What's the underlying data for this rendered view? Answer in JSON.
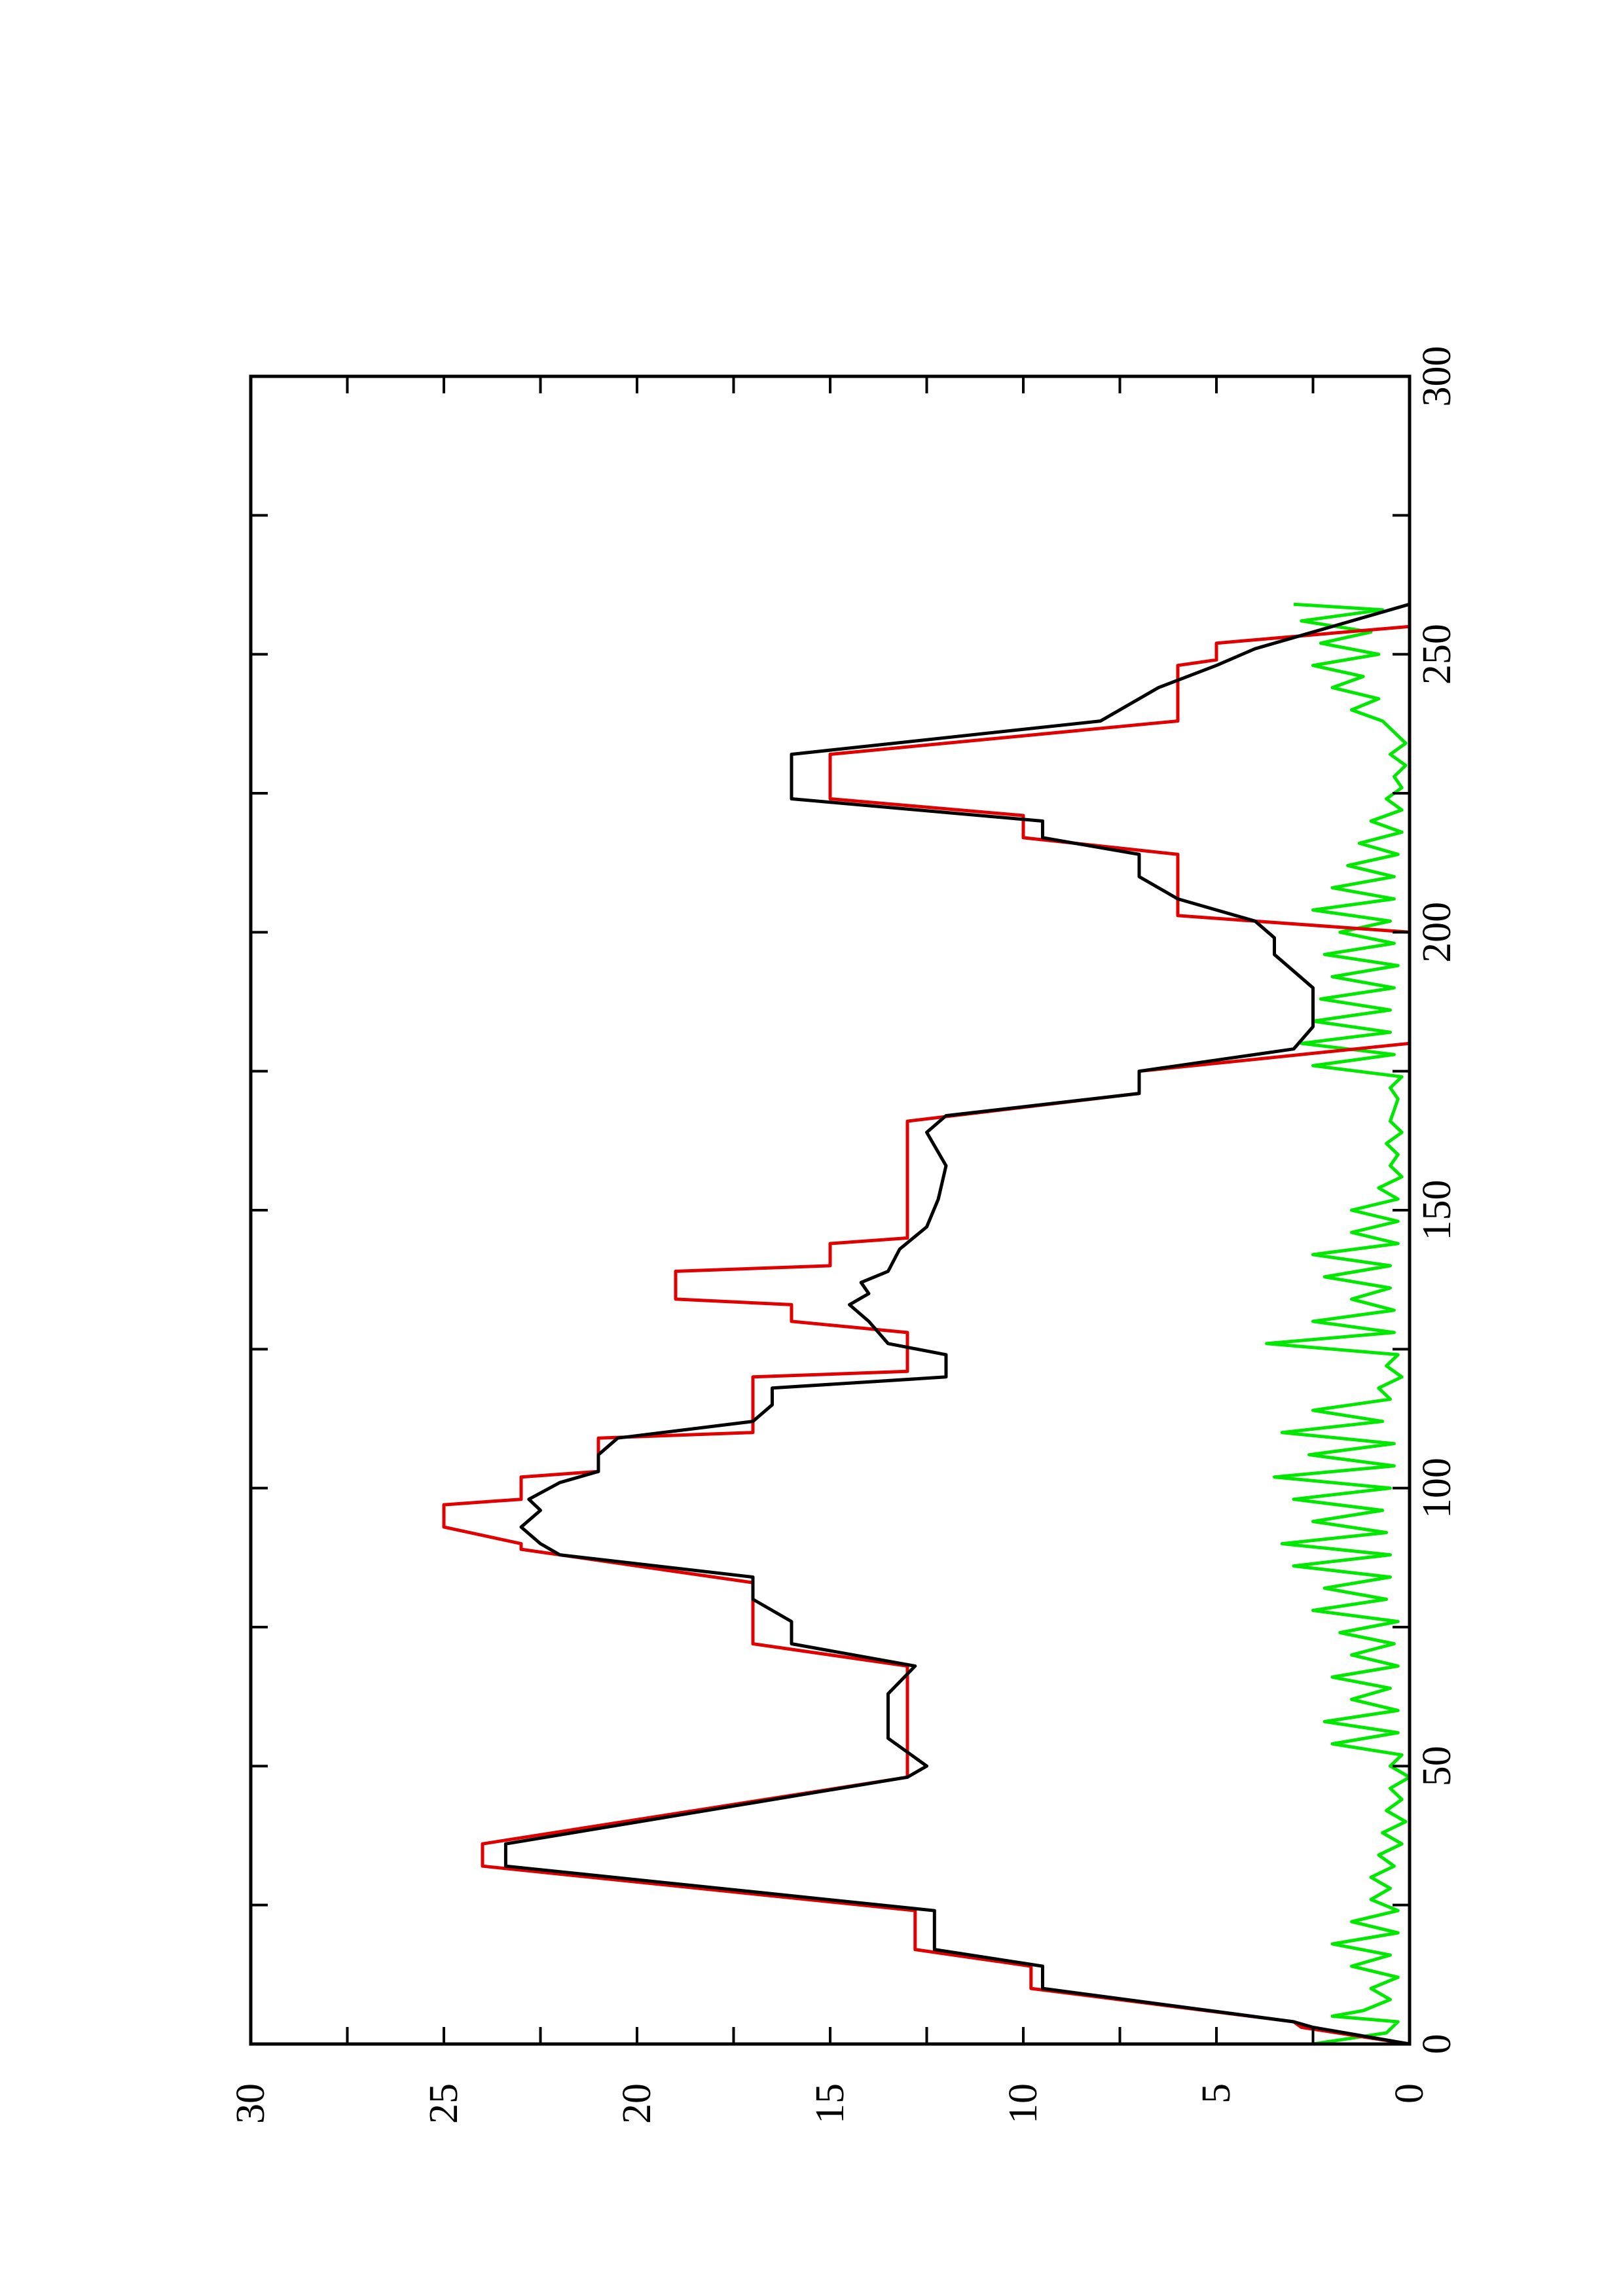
{
  "chart_data": {
    "type": "line",
    "title": "",
    "xlabel": "",
    "ylabel": "",
    "orientation": "rotated-90-ccw",
    "xlim": [
      0,
      300
    ],
    "ylim": [
      0,
      30
    ],
    "x_ticks": [
      0,
      50,
      100,
      150,
      200,
      250,
      300
    ],
    "y_ticks": [
      0,
      5,
      10,
      15,
      20,
      25,
      30
    ],
    "grid": false,
    "legend": "none",
    "series": [
      {
        "color": "#e00000",
        "points": [
          [
            0,
            0
          ],
          [
            3,
            2.8
          ],
          [
            4,
            3
          ],
          [
            10,
            9.8
          ],
          [
            14,
            9.8
          ],
          [
            17,
            12.8
          ],
          [
            24,
            12.8
          ],
          [
            32,
            24
          ],
          [
            36,
            24
          ],
          [
            48,
            13
          ],
          [
            68,
            13
          ],
          [
            72,
            17
          ],
          [
            83,
            17
          ],
          [
            89,
            23
          ],
          [
            90,
            23
          ],
          [
            93,
            25
          ],
          [
            97,
            25
          ],
          [
            98,
            23
          ],
          [
            102,
            23
          ],
          [
            103,
            21
          ],
          [
            109,
            21
          ],
          [
            110,
            17
          ],
          [
            120,
            17
          ],
          [
            121,
            13
          ],
          [
            128,
            13
          ],
          [
            130,
            16
          ],
          [
            133,
            16
          ],
          [
            134,
            19
          ],
          [
            139,
            19
          ],
          [
            140,
            15
          ],
          [
            144,
            15
          ],
          [
            145,
            13
          ],
          [
            166,
            13
          ],
          [
            171,
            7
          ],
          [
            175,
            7
          ],
          [
            180,
            0
          ],
          [
            200,
            0
          ],
          [
            203,
            6
          ],
          [
            214,
            6
          ],
          [
            217,
            10
          ],
          [
            221,
            10
          ],
          [
            224,
            15
          ],
          [
            232,
            15
          ],
          [
            238,
            6
          ],
          [
            248,
            6
          ],
          [
            249,
            5
          ],
          [
            252,
            5
          ],
          [
            255,
            0
          ]
        ]
      },
      {
        "color": "#000000",
        "points": [
          [
            0,
            0
          ],
          [
            3,
            2.5
          ],
          [
            4,
            3
          ],
          [
            10,
            9.5
          ],
          [
            14,
            9.5
          ],
          [
            17,
            12.3
          ],
          [
            24,
            12.3
          ],
          [
            32,
            23.4
          ],
          [
            36,
            23.4
          ],
          [
            48,
            13
          ],
          [
            50,
            12.5
          ],
          [
            55,
            13.5
          ],
          [
            63,
            13.5
          ],
          [
            68,
            12.8
          ],
          [
            72,
            16
          ],
          [
            76,
            16
          ],
          [
            80,
            17
          ],
          [
            84,
            17
          ],
          [
            88,
            22
          ],
          [
            90,
            22.5
          ],
          [
            93,
            23
          ],
          [
            96,
            22.5
          ],
          [
            98,
            22.8
          ],
          [
            101,
            22
          ],
          [
            103,
            21
          ],
          [
            106,
            21
          ],
          [
            109,
            20.5
          ],
          [
            112,
            17
          ],
          [
            115,
            16.5
          ],
          [
            118,
            16.5
          ],
          [
            120,
            12
          ],
          [
            124,
            12
          ],
          [
            126,
            13.5
          ],
          [
            130,
            14
          ],
          [
            133,
            14.5
          ],
          [
            135,
            14
          ],
          [
            137,
            14.2
          ],
          [
            139,
            13.5
          ],
          [
            143,
            13.2
          ],
          [
            147,
            12.5
          ],
          [
            152,
            12.2
          ],
          [
            158,
            12
          ],
          [
            164,
            12.5
          ],
          [
            167,
            12
          ],
          [
            171,
            7
          ],
          [
            175,
            7
          ],
          [
            179,
            3
          ],
          [
            183,
            2.5
          ],
          [
            190,
            2.5
          ],
          [
            193,
            3
          ],
          [
            196,
            3.5
          ],
          [
            199,
            3.5
          ],
          [
            202,
            4
          ],
          [
            206,
            6
          ],
          [
            210,
            7
          ],
          [
            214,
            7
          ],
          [
            217,
            9.5
          ],
          [
            220,
            9.5
          ],
          [
            224,
            16
          ],
          [
            232,
            16
          ],
          [
            238,
            8
          ],
          [
            244,
            6.5
          ],
          [
            248,
            5
          ],
          [
            251,
            4
          ],
          [
            254,
            2.5
          ],
          [
            257,
            1
          ],
          [
            259,
            0
          ]
        ]
      },
      {
        "color": "#00e800",
        "points": [
          [
            0,
            2.5
          ],
          [
            2,
            0.6
          ],
          [
            4,
            0.3
          ],
          [
            5,
            2
          ],
          [
            6,
            1.2
          ],
          [
            8,
            0.5
          ],
          [
            10,
            1
          ],
          [
            12,
            0.3
          ],
          [
            14,
            1.5
          ],
          [
            16,
            0.5
          ],
          [
            18,
            2
          ],
          [
            20,
            0.3
          ],
          [
            22,
            1.5
          ],
          [
            24,
            0.3
          ],
          [
            26,
            1
          ],
          [
            28,
            0.5
          ],
          [
            30,
            1
          ],
          [
            32,
            0.4
          ],
          [
            34,
            0.8
          ],
          [
            36,
            0.2
          ],
          [
            38,
            0.7
          ],
          [
            40,
            0.1
          ],
          [
            42,
            0.6
          ],
          [
            44,
            0.2
          ],
          [
            46,
            0.5
          ],
          [
            48,
            0
          ],
          [
            50,
            0.5
          ],
          [
            52,
            0.2
          ],
          [
            54,
            2
          ],
          [
            56,
            0.3
          ],
          [
            58,
            2.2
          ],
          [
            60,
            0.3
          ],
          [
            62,
            1.5
          ],
          [
            64,
            0.5
          ],
          [
            66,
            2
          ],
          [
            68,
            0.3
          ],
          [
            70,
            1.5
          ],
          [
            72,
            0.4
          ],
          [
            74,
            1.8
          ],
          [
            76,
            0.3
          ],
          [
            78,
            2.5
          ],
          [
            80,
            0.6
          ],
          [
            82,
            2.2
          ],
          [
            84,
            0.5
          ],
          [
            86,
            3
          ],
          [
            88,
            0.5
          ],
          [
            90,
            3.3
          ],
          [
            92,
            0.6
          ],
          [
            94,
            2.5
          ],
          [
            96,
            0.7
          ],
          [
            98,
            3
          ],
          [
            100,
            0.5
          ],
          [
            102,
            3.5
          ],
          [
            104,
            0.4
          ],
          [
            106,
            2.6
          ],
          [
            108,
            0.4
          ],
          [
            110,
            3.3
          ],
          [
            112,
            0.7
          ],
          [
            114,
            2.5
          ],
          [
            116,
            0.5
          ],
          [
            118,
            0.8
          ],
          [
            120,
            0.2
          ],
          [
            122,
            0.6
          ],
          [
            124,
            0.3
          ],
          [
            126,
            3.7
          ],
          [
            128,
            0.4
          ],
          [
            130,
            2.5
          ],
          [
            132,
            0.4
          ],
          [
            134,
            1.5
          ],
          [
            136,
            0.5
          ],
          [
            138,
            2.2
          ],
          [
            140,
            0.5
          ],
          [
            142,
            2.5
          ],
          [
            144,
            0.3
          ],
          [
            146,
            1.5
          ],
          [
            148,
            0.3
          ],
          [
            150,
            1.5
          ],
          [
            152,
            0.3
          ],
          [
            154,
            0.8
          ],
          [
            156,
            0.2
          ],
          [
            158,
            0.5
          ],
          [
            160,
            0.3
          ],
          [
            162,
            0.6
          ],
          [
            164,
            0.2
          ],
          [
            166,
            0.5
          ],
          [
            168,
            0.4
          ],
          [
            170,
            0.3
          ],
          [
            172,
            0.5
          ],
          [
            174,
            0.2
          ],
          [
            176,
            2.5
          ],
          [
            178,
            0.4
          ],
          [
            180,
            2.8
          ],
          [
            182,
            0.5
          ],
          [
            184,
            2.5
          ],
          [
            186,
            0.5
          ],
          [
            188,
            2.3
          ],
          [
            190,
            0.4
          ],
          [
            192,
            2
          ],
          [
            194,
            0.3
          ],
          [
            196,
            2.2
          ],
          [
            198,
            0.4
          ],
          [
            200,
            1.8
          ],
          [
            202,
            0.5
          ],
          [
            204,
            2.5
          ],
          [
            206,
            0.4
          ],
          [
            208,
            2
          ],
          [
            210,
            0.4
          ],
          [
            212,
            1.6
          ],
          [
            214,
            0.3
          ],
          [
            216,
            1.3
          ],
          [
            218,
            0.2
          ],
          [
            220,
            1
          ],
          [
            222,
            0.2
          ],
          [
            224,
            0.6
          ],
          [
            226,
            0.2
          ],
          [
            228,
            0.4
          ],
          [
            230,
            0.1
          ],
          [
            232,
            0.5
          ],
          [
            234,
            0.1
          ],
          [
            236,
            0.4
          ],
          [
            238,
            0.7
          ],
          [
            240,
            1.5
          ],
          [
            242,
            0.8
          ],
          [
            244,
            2
          ],
          [
            246,
            1.2
          ],
          [
            248,
            2.5
          ],
          [
            250,
            0.8
          ],
          [
            252,
            2.3
          ],
          [
            254,
            1
          ],
          [
            256,
            2.8
          ],
          [
            258,
            0.7
          ],
          [
            259,
            3
          ]
        ]
      }
    ]
  }
}
